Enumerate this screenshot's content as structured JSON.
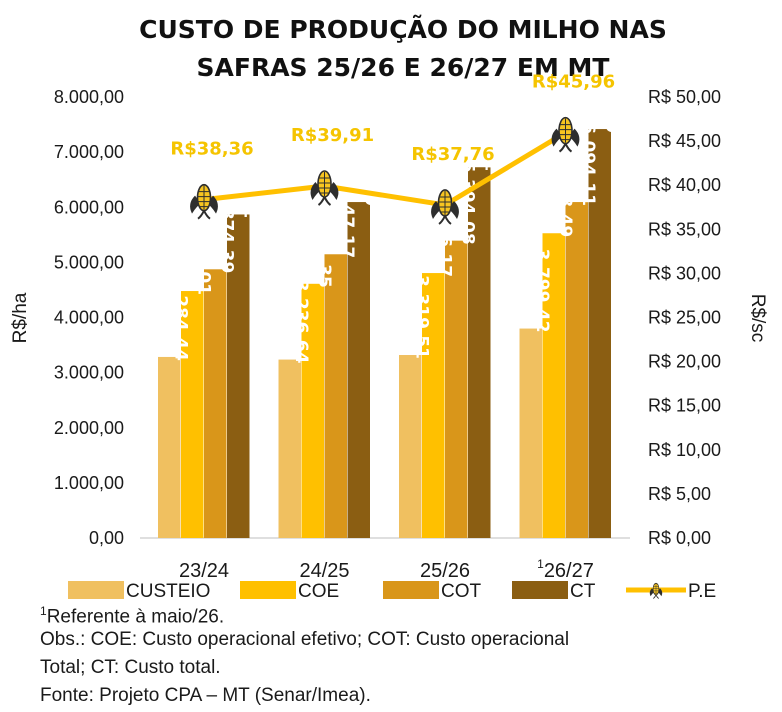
{
  "chart_data": {
    "type": "bar",
    "title": [
      "CUSTO DE PRODUÇÃO DO MILHO NAS",
      "SAFRAS 25/26 E  26/27 EM MT"
    ],
    "categories": [
      "23/24",
      "24/25",
      "25/26",
      "26/27"
    ],
    "category_superscripts": [
      "",
      "",
      "",
      "1"
    ],
    "ylabel_left": "R$/ha",
    "ylabel_right": "R$/sc",
    "ylim_left": [
      0,
      8000
    ],
    "ylim_right": [
      0,
      50
    ],
    "yticks_left": [
      "0,00",
      "1.000,00",
      "2.000,00",
      "3.000,00",
      "4.000,00",
      "5.000,00",
      "6.000,00",
      "7.000,00",
      "8.000,00"
    ],
    "yticks_right": [
      "R$ 0,00",
      "R$ 5,00",
      "R$ 10,00",
      "R$ 15,00",
      "R$ 20,00",
      "R$ 25,00",
      "R$ 30,00",
      "R$ 35,00",
      "R$ 40,00",
      "R$ 45,00",
      "R$ 50,00"
    ],
    "series": [
      {
        "name": "CUSTEIO",
        "color": "#f0c060",
        "values": [
          3284.44,
          3236.64,
          3319.51,
          3799.42
        ],
        "labels": [
          "3.284,44",
          "3.236,64",
          "3.319,51",
          "3.799,42"
        ]
      },
      {
        "name": "COE",
        "color": "#ffc000",
        "values": [
          4480.01,
          4611.35,
          4806.17,
          5528.49
        ],
        "labels": [
          "4.480,01",
          "4.611,35",
          "4.806,17",
          "5.528,49"
        ]
      },
      {
        "name": "COT",
        "color": "#d9961a",
        "values": [
          4874.39,
          5147.17,
          5394.08,
          6094.11
        ],
        "labels": [
          "4.874,39",
          "5.147,17",
          "5.394,08",
          "6.094,11"
        ]
      },
      {
        "name": "CT",
        "color": "#8b5e12",
        "values": [
          5869.12,
          6094.19,
          6725.91,
          7418.49
        ],
        "labels": [
          "5.869,12",
          "6.094,19",
          "6.725,91",
          "7.418,49"
        ]
      }
    ],
    "line_series": {
      "name": "P.E",
      "color": "#ffc000",
      "axis": "right",
      "values": [
        38.36,
        39.91,
        37.76,
        45.96
      ],
      "labels": [
        "R$38,36",
        "R$39,91",
        "R$37,76",
        "R$45,96"
      ],
      "marker": "corn-icon"
    },
    "legend": "bottom",
    "grid": false
  },
  "notes": {
    "footnote_sup": "1",
    "footnote": "Referente à maio/26.",
    "obs_line1": "Obs.: COE: Custo operacional efetivo; COT: Custo operacional",
    "obs_line2": "Total; CT: Custo total.",
    "source": "Fonte: Projeto CPA – MT (Senar/Imea)."
  }
}
